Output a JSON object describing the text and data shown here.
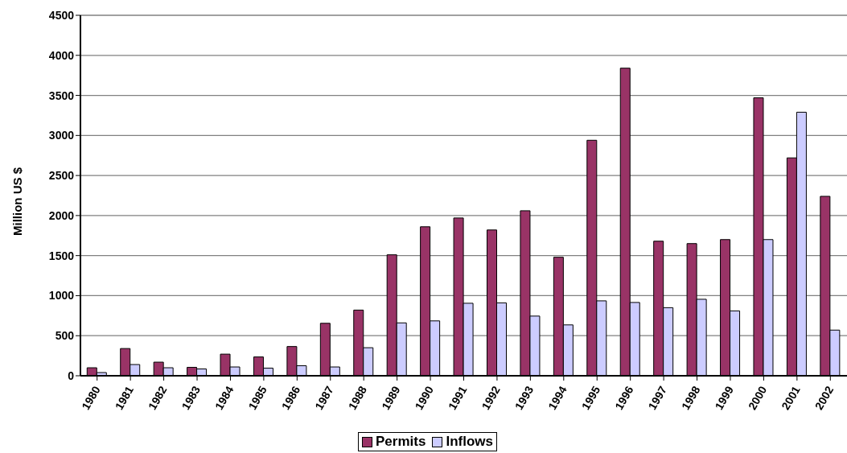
{
  "chart_data": {
    "type": "bar",
    "ylabel": "Million US $",
    "categories": [
      "1980",
      "1981",
      "1982",
      "1983",
      "1984",
      "1985",
      "1986",
      "1987",
      "1988",
      "1989",
      "1990",
      "1991",
      "1992",
      "1993",
      "1994",
      "1995",
      "1996",
      "1997",
      "1998",
      "1999",
      "2000",
      "2001",
      "2002"
    ],
    "series": [
      {
        "name": "Permits",
        "color": "#993366",
        "values": [
          100,
          340,
          170,
          105,
          270,
          235,
          365,
          655,
          820,
          1510,
          1860,
          1970,
          1820,
          2060,
          1480,
          2940,
          3840,
          1680,
          1650,
          1700,
          3470,
          2720,
          2240
        ]
      },
      {
        "name": "Inflows",
        "color": "#ccccff",
        "values": [
          40,
          140,
          100,
          85,
          110,
          95,
          125,
          110,
          350,
          660,
          685,
          905,
          910,
          745,
          635,
          935,
          915,
          850,
          955,
          810,
          1700,
          3290,
          570
        ]
      }
    ],
    "ylim": [
      0,
      4500
    ],
    "yticks": [
      0,
      500,
      1000,
      1500,
      2000,
      2500,
      3000,
      3500,
      4000,
      4500
    ],
    "grid": "y",
    "legend": "bottom"
  }
}
